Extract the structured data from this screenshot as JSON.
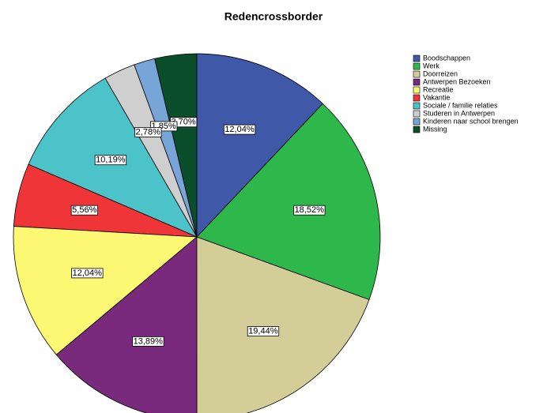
{
  "chart_data": {
    "type": "pie",
    "title": "Redencrossborder",
    "categories": [
      "Boodschappen",
      "Werk",
      "Doorreizen",
      "Antwerpen Bezoeken",
      "Recreatie",
      "Vakantie",
      "Sociale / familie relaties",
      "Studeren in Antwerpen",
      "Kinderen naar school brengen",
      "Missing"
    ],
    "values": [
      12.04,
      18.52,
      19.44,
      13.89,
      12.04,
      5.56,
      10.19,
      2.78,
      1.85,
      3.7
    ],
    "value_labels": [
      "12,04%",
      "18,52%",
      "19,44%",
      "13,89%",
      "12,04%",
      "5,56%",
      "10,19%",
      "2,78%",
      "1,85%",
      "3,70%"
    ],
    "colors": [
      "#3f58a8",
      "#2eb84b",
      "#d3ce98",
      "#7a2a7d",
      "#fdf873",
      "#ef3538",
      "#4cc3c8",
      "#cfcfcf",
      "#78a5d8",
      "#0b4e2c"
    ],
    "legend": "top-right"
  }
}
